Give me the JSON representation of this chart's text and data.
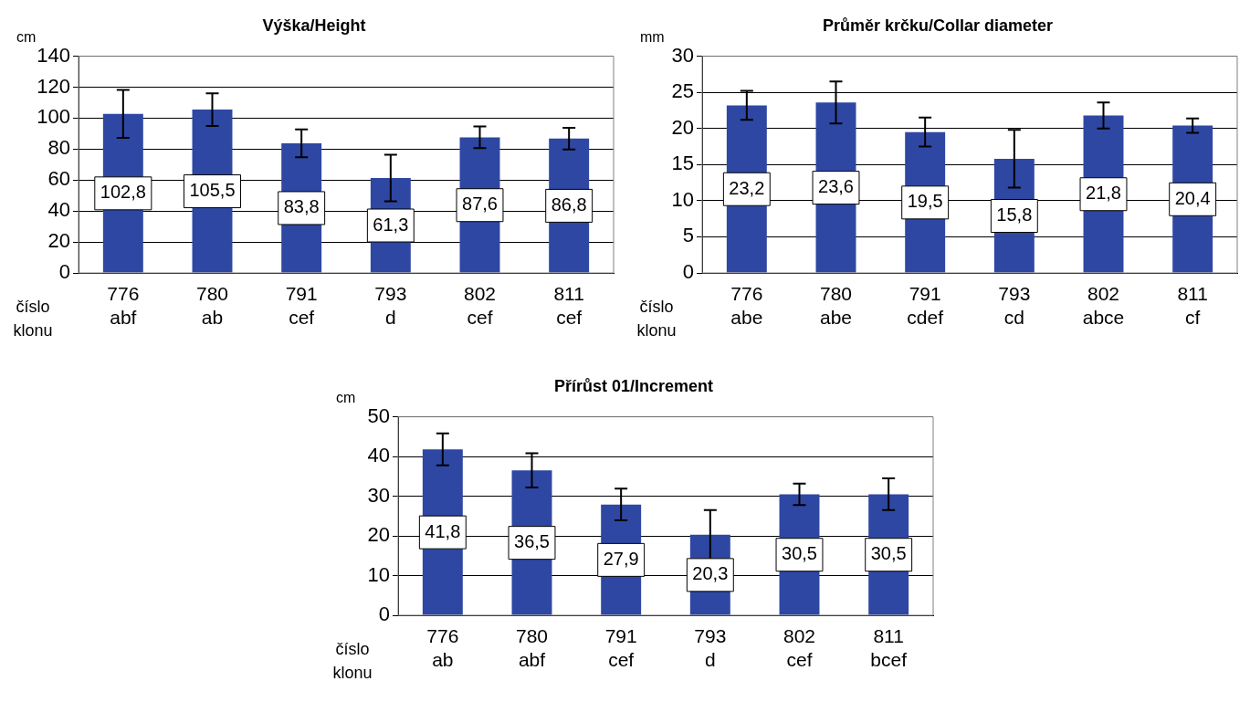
{
  "chart_data": [
    {
      "type": "bar",
      "title": "Výška/Height",
      "ylabel": "cm",
      "xlabel": "číslo klonu",
      "categories": [
        "776\nabf",
        "780\nab",
        "791\ncef",
        "793\nd",
        "802\ncef",
        "811\ncef"
      ],
      "values": [
        102.8,
        105.5,
        83.8,
        61.3,
        87.6,
        86.8
      ],
      "value_labels": [
        "102,8",
        "105,5",
        "83,8",
        "61,3",
        "87,6",
        "86,8"
      ],
      "errors": [
        15.5,
        10.5,
        9,
        15,
        7,
        7
      ],
      "color": "#2e47a3",
      "ylim": [
        0,
        140
      ],
      "yticks": [
        0,
        20,
        40,
        60,
        80,
        100,
        120,
        140
      ],
      "grid": "y",
      "legend": false
    },
    {
      "type": "bar",
      "title": "Průměr krčku/Collar diameter",
      "ylabel": "mm",
      "xlabel": "číslo klonu",
      "categories": [
        "776\nabe",
        "780\nabe",
        "791\ncdef",
        "793\ncd",
        "802\nabce",
        "811\ncf"
      ],
      "values": [
        23.2,
        23.6,
        19.5,
        15.8,
        21.8,
        20.4
      ],
      "value_labels": [
        "23,2",
        "23,6",
        "19,5",
        "15,8",
        "21,8",
        "20,4"
      ],
      "errors": [
        2,
        2.9,
        2,
        4,
        1.8,
        1
      ],
      "color": "#2e47a3",
      "ylim": [
        0,
        30
      ],
      "yticks": [
        0,
        5,
        10,
        15,
        20,
        25,
        30
      ],
      "grid": "y",
      "legend": false
    },
    {
      "type": "bar",
      "title": "Přírůst 01/Increment",
      "ylabel": "cm",
      "xlabel": "číslo klonu",
      "categories": [
        "776\nab",
        "780\nabf",
        "791\ncef",
        "793\nd",
        "802\ncef",
        "811\nbcef"
      ],
      "values": [
        41.8,
        36.5,
        27.9,
        20.3,
        30.5,
        30.5
      ],
      "value_labels": [
        "41,8",
        "36,5",
        "27,9",
        "20,3",
        "30,5",
        "30,5"
      ],
      "errors": [
        4,
        4.3,
        4,
        6.2,
        2.7,
        4
      ],
      "color": "#2e47a3",
      "ylim": [
        0,
        50
      ],
      "yticks": [
        0,
        10,
        20,
        30,
        40,
        50
      ],
      "grid": "y",
      "legend": false
    }
  ]
}
